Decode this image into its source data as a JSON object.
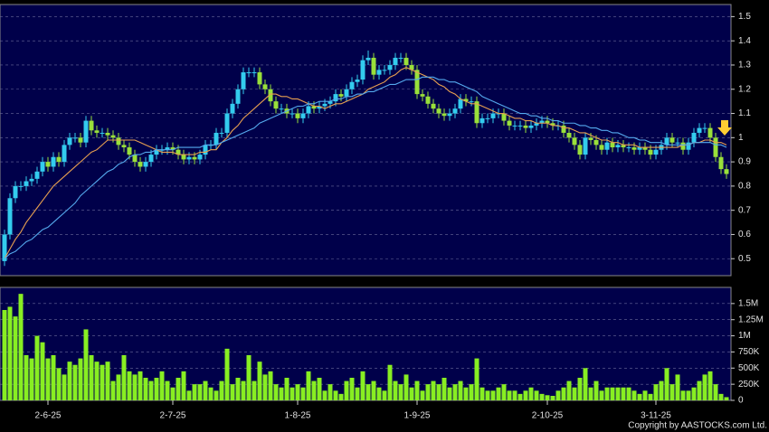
{
  "chart_data": [
    {
      "type": "candlestick",
      "open": [
        0.49,
        0.6,
        0.75,
        0.8,
        0.8,
        0.82,
        0.83,
        0.86,
        0.9,
        0.88,
        0.92,
        0.9,
        0.97,
        1.0,
        1.0,
        0.98,
        1.07,
        1.03,
        1.02,
        1.02,
        1.01,
        1.0,
        0.97,
        0.96,
        0.93,
        0.9,
        0.88,
        0.9,
        0.93,
        0.95,
        0.95,
        0.96,
        0.95,
        0.93,
        0.91,
        0.92,
        0.91,
        0.93,
        0.97,
        0.97,
        1.02,
        1.02,
        1.1,
        1.14,
        1.2,
        1.27,
        1.27,
        1.27,
        1.22,
        1.2,
        1.15,
        1.12,
        1.12,
        1.1,
        1.1,
        1.08,
        1.1,
        1.13,
        1.12,
        1.13,
        1.14,
        1.15,
        1.18,
        1.17,
        1.2,
        1.23,
        1.24,
        1.32,
        1.33,
        1.26,
        1.28,
        1.28,
        1.3,
        1.33,
        1.33,
        1.3,
        1.28,
        1.18,
        1.17,
        1.14,
        1.12,
        1.1,
        1.09,
        1.1,
        1.12,
        1.16,
        1.15,
        1.15,
        1.06,
        1.08,
        1.08,
        1.1,
        1.1,
        1.07,
        1.05,
        1.05,
        1.05,
        1.04,
        1.05,
        1.06,
        1.07,
        1.06,
        1.05,
        1.05,
        1.02,
        1.0,
        0.97,
        0.93,
        1.0,
        0.99,
        0.97,
        0.95,
        0.98,
        0.96,
        0.97,
        0.96,
        0.96,
        0.95,
        0.96,
        0.95,
        0.93,
        0.95,
        0.97,
        1.0,
        0.98,
        0.98,
        0.95,
        0.98,
        1.02,
        1.04,
        1.04,
        1.0,
        0.92,
        0.87
      ],
      "high": [
        0.62,
        0.77,
        0.82,
        0.82,
        0.84,
        0.85,
        0.88,
        0.92,
        0.92,
        0.94,
        0.94,
        0.99,
        1.02,
        1.02,
        1.02,
        1.09,
        1.09,
        1.05,
        1.04,
        1.04,
        1.03,
        1.02,
        0.99,
        0.98,
        0.95,
        0.92,
        0.92,
        0.95,
        0.97,
        0.97,
        0.98,
        0.98,
        0.97,
        0.95,
        0.94,
        0.94,
        0.95,
        0.99,
        0.99,
        1.04,
        1.04,
        1.12,
        1.16,
        1.22,
        1.29,
        1.29,
        1.29,
        1.29,
        1.24,
        1.22,
        1.17,
        1.14,
        1.14,
        1.12,
        1.12,
        1.12,
        1.15,
        1.15,
        1.15,
        1.16,
        1.17,
        1.2,
        1.2,
        1.22,
        1.25,
        1.26,
        1.34,
        1.36,
        1.35,
        1.3,
        1.3,
        1.32,
        1.35,
        1.35,
        1.35,
        1.32,
        1.3,
        1.2,
        1.19,
        1.16,
        1.14,
        1.12,
        1.12,
        1.14,
        1.18,
        1.18,
        1.17,
        1.17,
        1.1,
        1.1,
        1.12,
        1.12,
        1.12,
        1.09,
        1.07,
        1.07,
        1.07,
        1.07,
        1.08,
        1.09,
        1.09,
        1.08,
        1.07,
        1.07,
        1.04,
        1.02,
        0.99,
        1.02,
        1.02,
        1.01,
        0.99,
        1.0,
        1.0,
        0.99,
        0.99,
        0.98,
        0.98,
        0.98,
        0.98,
        0.97,
        0.97,
        0.99,
        1.02,
        1.02,
        1.0,
        1.0,
        1.0,
        1.04,
        1.06,
        1.06,
        1.06,
        1.02,
        0.94,
        0.89
      ],
      "low": [
        0.47,
        0.58,
        0.73,
        0.78,
        0.78,
        0.8,
        0.81,
        0.84,
        0.86,
        0.86,
        0.88,
        0.88,
        0.95,
        0.98,
        0.96,
        0.96,
        1.01,
        1.0,
        1.0,
        0.99,
        0.98,
        0.95,
        0.94,
        0.91,
        0.88,
        0.86,
        0.86,
        0.88,
        0.91,
        0.93,
        0.93,
        0.93,
        0.91,
        0.89,
        0.89,
        0.89,
        0.89,
        0.91,
        0.95,
        0.95,
        1.0,
        1.0,
        1.08,
        1.12,
        1.18,
        1.25,
        1.25,
        1.2,
        1.18,
        1.13,
        1.1,
        1.1,
        1.08,
        1.08,
        1.06,
        1.06,
        1.08,
        1.1,
        1.1,
        1.11,
        1.12,
        1.13,
        1.15,
        1.15,
        1.18,
        1.21,
        1.22,
        1.3,
        1.24,
        1.24,
        1.26,
        1.26,
        1.28,
        1.31,
        1.28,
        1.26,
        1.16,
        1.15,
        1.12,
        1.1,
        1.08,
        1.07,
        1.07,
        1.08,
        1.1,
        1.13,
        1.13,
        1.04,
        1.04,
        1.06,
        1.06,
        1.08,
        1.05,
        1.03,
        1.03,
        1.03,
        1.02,
        1.02,
        1.03,
        1.04,
        1.04,
        1.03,
        1.03,
        1.0,
        0.98,
        0.95,
        0.91,
        0.91,
        0.97,
        0.95,
        0.93,
        0.93,
        0.94,
        0.94,
        0.94,
        0.94,
        0.93,
        0.93,
        0.93,
        0.91,
        0.91,
        0.93,
        0.95,
        0.96,
        0.96,
        0.93,
        0.93,
        0.96,
        1.0,
        1.02,
        0.98,
        0.9,
        0.85,
        0.83
      ],
      "close": [
        0.6,
        0.75,
        0.8,
        0.8,
        0.82,
        0.83,
        0.86,
        0.9,
        0.88,
        0.92,
        0.9,
        0.97,
        1.0,
        1.0,
        0.98,
        1.07,
        1.03,
        1.02,
        1.02,
        1.01,
        1.0,
        0.97,
        0.96,
        0.93,
        0.9,
        0.88,
        0.9,
        0.93,
        0.95,
        0.95,
        0.96,
        0.95,
        0.93,
        0.91,
        0.92,
        0.91,
        0.93,
        0.97,
        0.97,
        1.02,
        1.02,
        1.1,
        1.14,
        1.2,
        1.27,
        1.27,
        1.27,
        1.22,
        1.2,
        1.15,
        1.12,
        1.12,
        1.1,
        1.1,
        1.08,
        1.1,
        1.13,
        1.12,
        1.13,
        1.14,
        1.15,
        1.18,
        1.17,
        1.2,
        1.23,
        1.24,
        1.32,
        1.33,
        1.26,
        1.28,
        1.28,
        1.3,
        1.33,
        1.33,
        1.3,
        1.28,
        1.18,
        1.17,
        1.14,
        1.12,
        1.1,
        1.09,
        1.1,
        1.12,
        1.16,
        1.15,
        1.15,
        1.06,
        1.08,
        1.08,
        1.1,
        1.1,
        1.07,
        1.05,
        1.05,
        1.05,
        1.04,
        1.05,
        1.06,
        1.07,
        1.06,
        1.05,
        1.05,
        1.02,
        1.0,
        0.97,
        0.93,
        1.0,
        0.99,
        0.97,
        0.95,
        0.98,
        0.96,
        0.97,
        0.96,
        0.96,
        0.95,
        0.96,
        0.95,
        0.93,
        0.95,
        0.97,
        1.0,
        0.98,
        0.98,
        0.95,
        0.98,
        1.02,
        1.04,
        1.04,
        1.0,
        0.92,
        0.87,
        0.85
      ],
      "up_color": "#33ccee",
      "down_color": "#99e03a",
      "lines": [
        {
          "color": "#e8a050",
          "values": [
            0.5,
            0.54,
            0.58,
            0.61,
            0.65,
            0.68,
            0.71,
            0.74,
            0.77,
            0.8,
            0.82,
            0.84,
            0.86,
            0.88,
            0.9,
            0.92,
            0.94,
            0.95,
            0.97,
            0.99,
            0.99,
            0.99,
            0.99,
            0.99,
            0.99,
            0.98,
            0.97,
            0.96,
            0.95,
            0.94,
            0.94,
            0.94,
            0.93,
            0.93,
            0.93,
            0.93,
            0.94,
            0.94,
            0.95,
            0.95,
            0.98,
            1.0,
            1.03,
            1.05,
            1.08,
            1.1,
            1.12,
            1.14,
            1.16,
            1.18,
            1.18,
            1.17,
            1.17,
            1.16,
            1.16,
            1.15,
            1.14,
            1.13,
            1.13,
            1.12,
            1.13,
            1.14,
            1.14,
            1.15,
            1.16,
            1.17,
            1.18,
            1.2,
            1.21,
            1.22,
            1.23,
            1.25,
            1.26,
            1.28,
            1.29,
            1.28,
            1.27,
            1.26,
            1.25,
            1.24,
            1.22,
            1.21,
            1.19,
            1.18,
            1.16,
            1.15,
            1.14,
            1.14,
            1.13,
            1.12,
            1.11,
            1.1,
            1.1,
            1.09,
            1.08,
            1.08,
            1.07,
            1.07,
            1.06,
            1.06,
            1.06,
            1.05,
            1.05,
            1.04,
            1.04,
            1.03,
            1.02,
            1.02,
            1.01,
            1.0,
            0.99,
            0.99,
            0.98,
            0.98,
            0.97,
            0.97,
            0.97,
            0.96,
            0.96,
            0.96,
            0.96,
            0.96,
            0.96,
            0.96,
            0.96,
            0.97,
            0.97,
            0.98,
            0.98,
            0.99,
            0.99,
            0.98,
            0.98,
            0.97
          ]
        },
        {
          "color": "#55aaee",
          "values": [
            0.5,
            0.52,
            0.53,
            0.55,
            0.57,
            0.58,
            0.6,
            0.62,
            0.63,
            0.65,
            0.67,
            0.69,
            0.71,
            0.73,
            0.76,
            0.78,
            0.8,
            0.82,
            0.84,
            0.86,
            0.87,
            0.89,
            0.9,
            0.92,
            0.93,
            0.93,
            0.94,
            0.94,
            0.95,
            0.95,
            0.95,
            0.95,
            0.96,
            0.96,
            0.96,
            0.96,
            0.96,
            0.97,
            0.97,
            0.97,
            0.98,
            0.99,
            1.0,
            1.01,
            1.02,
            1.03,
            1.04,
            1.06,
            1.07,
            1.08,
            1.09,
            1.1,
            1.11,
            1.12,
            1.13,
            1.13,
            1.14,
            1.14,
            1.15,
            1.15,
            1.15,
            1.16,
            1.16,
            1.17,
            1.17,
            1.18,
            1.18,
            1.19,
            1.19,
            1.2,
            1.21,
            1.22,
            1.22,
            1.23,
            1.24,
            1.24,
            1.24,
            1.25,
            1.25,
            1.25,
            1.24,
            1.24,
            1.23,
            1.23,
            1.22,
            1.21,
            1.2,
            1.19,
            1.17,
            1.16,
            1.15,
            1.14,
            1.13,
            1.12,
            1.11,
            1.1,
            1.1,
            1.09,
            1.09,
            1.08,
            1.08,
            1.07,
            1.07,
            1.06,
            1.06,
            1.06,
            1.05,
            1.05,
            1.04,
            1.04,
            1.03,
            1.03,
            1.02,
            1.02,
            1.01,
            1.0,
            1.0,
            0.99,
            0.99,
            0.98,
            0.98,
            0.98,
            0.97,
            0.97,
            0.97,
            0.97,
            0.97,
            0.98,
            0.98,
            0.98,
            0.98,
            0.97,
            0.97,
            0.96
          ]
        }
      ],
      "ylim": [
        0.43,
        1.55
      ],
      "yticks": [
        0.5,
        0.6,
        0.7,
        0.8,
        0.9,
        1,
        1.1,
        1.2,
        1.3,
        1.4,
        1.5
      ],
      "grid": true
    },
    {
      "type": "bar",
      "categories": [
        null,
        null,
        null,
        null,
        null,
        null,
        null,
        null,
        "2-6-25",
        null,
        null,
        null,
        null,
        null,
        null,
        null,
        null,
        null,
        null,
        null,
        null,
        null,
        null,
        null,
        null,
        null,
        null,
        null,
        null,
        null,
        null,
        "2-7-25",
        null,
        null,
        null,
        null,
        null,
        null,
        null,
        null,
        null,
        null,
        null,
        null,
        null,
        null,
        null,
        null,
        null,
        null,
        null,
        null,
        null,
        null,
        "1-8-25",
        null,
        null,
        null,
        null,
        null,
        null,
        null,
        null,
        null,
        null,
        null,
        null,
        null,
        null,
        null,
        null,
        null,
        null,
        null,
        null,
        null,
        "1-9-25",
        null,
        null,
        null,
        null,
        null,
        null,
        null,
        null,
        null,
        null,
        null,
        null,
        null,
        null,
        null,
        null,
        null,
        null,
        null,
        null,
        null,
        null,
        null,
        "2-10-25",
        null,
        null,
        null,
        null,
        null,
        null,
        null,
        null,
        null,
        null,
        null,
        null,
        null,
        null,
        null,
        null,
        null,
        null,
        null,
        "3-11-25",
        null,
        null,
        null,
        null,
        null,
        null,
        null,
        null,
        null,
        null,
        null,
        null,
        null
      ],
      "values": [
        1400000,
        1450000,
        1300000,
        1650000,
        700000,
        650000,
        1000000,
        900000,
        650000,
        700000,
        500000,
        400000,
        600000,
        550000,
        650000,
        1100000,
        700000,
        600000,
        550000,
        600000,
        300000,
        400000,
        700000,
        450000,
        400000,
        450000,
        350000,
        300000,
        350000,
        450000,
        300000,
        200000,
        350000,
        450000,
        150000,
        250000,
        250000,
        300000,
        200000,
        150000,
        300000,
        800000,
        250000,
        350000,
        300000,
        700000,
        300000,
        600000,
        400000,
        450000,
        250000,
        200000,
        350000,
        200000,
        250000,
        200000,
        450000,
        300000,
        350000,
        150000,
        250000,
        150000,
        100000,
        300000,
        350000,
        200000,
        450000,
        250000,
        300000,
        200000,
        150000,
        550000,
        300000,
        250000,
        400000,
        200000,
        300000,
        150000,
        250000,
        300000,
        250000,
        350000,
        200000,
        250000,
        300000,
        200000,
        250000,
        650000,
        200000,
        150000,
        150000,
        200000,
        250000,
        150000,
        150000,
        100000,
        150000,
        200000,
        150000,
        100000,
        80000,
        70000,
        150000,
        200000,
        300000,
        200000,
        350000,
        500000,
        200000,
        300000,
        150000,
        200000,
        200000,
        200000,
        200000,
        200000,
        150000,
        100000,
        150000,
        100000,
        250000,
        300000,
        500000,
        250000,
        400000,
        150000,
        150000,
        200000,
        300000,
        400000,
        450000,
        250000,
        100000,
        50000
      ],
      "color": "#88ee22",
      "ylim": [
        0,
        1750000
      ],
      "yticks": [
        0,
        {
          "value": 250000,
          "label": "250K"
        },
        {
          "value": 500000,
          "label": "500K"
        },
        {
          "value": 750000,
          "label": "750K"
        },
        {
          "value": 1000000,
          "label": "1M"
        },
        {
          "value": 1250000,
          "label": "1.25M"
        },
        {
          "value": 1500000,
          "label": "1.5M"
        }
      ],
      "grid": true
    }
  ],
  "footer": {
    "copyright": "Copyright by AASTOCKS.com Ltd."
  }
}
